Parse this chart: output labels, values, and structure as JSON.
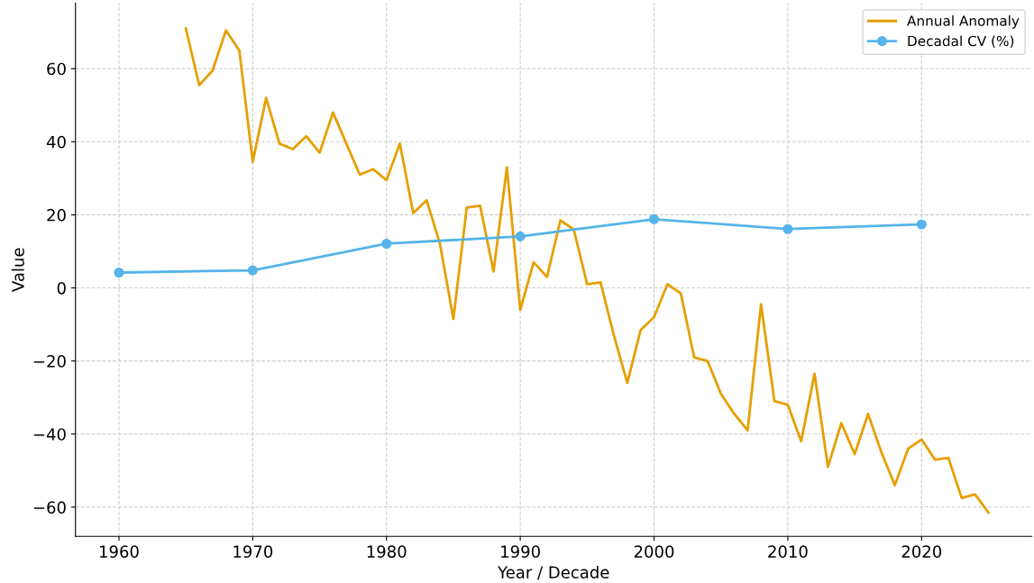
{
  "chart_data": {
    "type": "line",
    "xlabel": "Year / Decade",
    "ylabel": "Value",
    "xlim": [
      1956.75,
      2028.25
    ],
    "xticks": [
      1960,
      1970,
      1980,
      1990,
      2000,
      2010,
      2020
    ],
    "ylim": [
      -68,
      78
    ],
    "yticks": [
      {
        "value": -60,
        "label": "−60"
      },
      {
        "value": -40,
        "label": "−40"
      },
      {
        "value": -20,
        "label": "−20"
      },
      0,
      20,
      40,
      60
    ],
    "grid": true,
    "legend": "top right",
    "series": [
      {
        "name": "Annual Anomaly",
        "color": "#e69f00",
        "marker": "none",
        "x": [
          1965,
          1966,
          1967,
          1968,
          1969,
          1970,
          1971,
          1972,
          1973,
          1974,
          1975,
          1976,
          1977,
          1978,
          1979,
          1980,
          1981,
          1982,
          1983,
          1984,
          1985,
          1986,
          1987,
          1988,
          1989,
          1990,
          1991,
          1992,
          1993,
          1994,
          1995,
          1996,
          1997,
          1998,
          1999,
          2000,
          2001,
          2002,
          2003,
          2004,
          2005,
          2006,
          2007,
          2008,
          2009,
          2010,
          2011,
          2012,
          2013,
          2014,
          2015,
          2016,
          2017,
          2018,
          2019,
          2020,
          2021,
          2022,
          2023,
          2024,
          2025
        ],
        "values": [
          71,
          55.5,
          59.5,
          70.5,
          65,
          34.5,
          52,
          39.5,
          38,
          41.5,
          37,
          48,
          39.5,
          31,
          32.5,
          29.5,
          39.5,
          20.5,
          24,
          12,
          -8.5,
          22,
          22.5,
          4.5,
          33,
          -6,
          7,
          3,
          18.5,
          16,
          1,
          1.5,
          -13,
          -26,
          -11.5,
          -8,
          1,
          -1.5,
          -19,
          -20,
          -29,
          -34.5,
          -39,
          -4.5,
          -31,
          -32,
          -42,
          -23.5,
          -49,
          -37,
          -45.5,
          -34.5,
          -45,
          -54,
          -44,
          -41.5,
          -47,
          -46.5,
          -57.5,
          -56.5,
          -61.5
        ]
      },
      {
        "name": "Decadal CV (%)",
        "color": "#56b4e9",
        "marker": "circle",
        "x": [
          1960,
          1970,
          1980,
          1990,
          2000,
          2010,
          2020
        ],
        "values": [
          4.2,
          4.8,
          12.1,
          14.1,
          18.8,
          16.1,
          17.4
        ]
      }
    ]
  }
}
